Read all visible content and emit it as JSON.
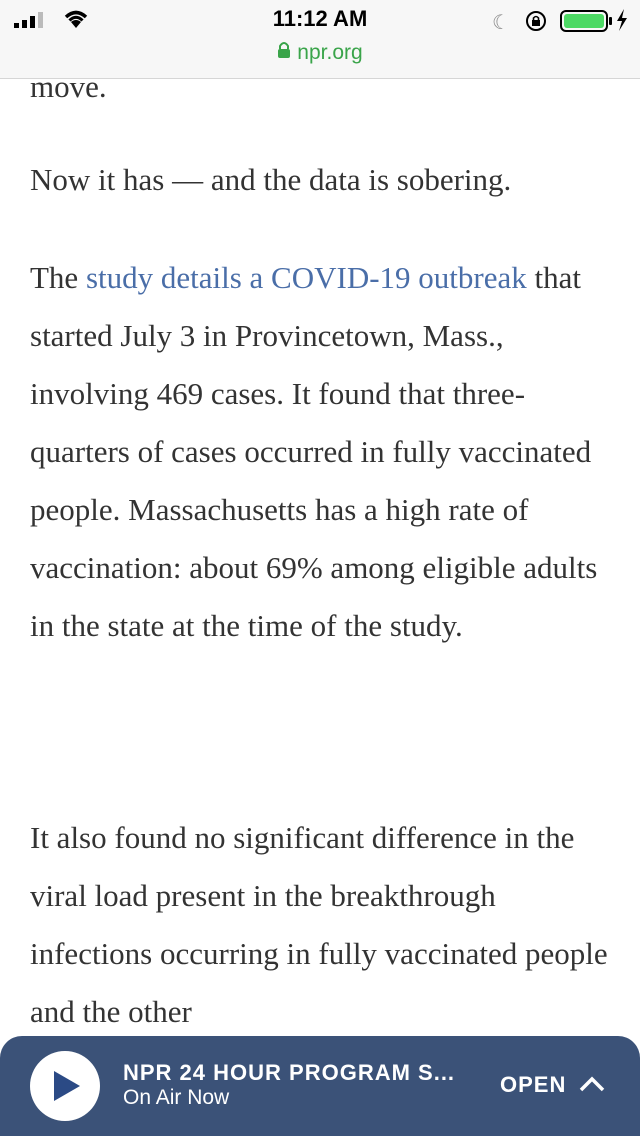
{
  "status_bar": {
    "time": "11:12 AM",
    "url": "npr.org"
  },
  "article": {
    "partial_top": "move.",
    "para1": "Now it has — and the data is sobering.",
    "para2": {
      "lead": "The ",
      "link_text": "study details a COVID-19 outbreak",
      "rest": " that started July 3 in Provincetown, Mass., involving 469 cases. It found that three-quarters of cases occurred in fully vaccinated people. Massachusetts has a high rate of vaccination: about 69% among eligible adults in the state at the time of the study."
    },
    "para3": "It also found no significant difference in the viral load present in the breakthrough infections occurring in fully vaccinated people and the other"
  },
  "player": {
    "title": "NPR 24 HOUR PROGRAM S...",
    "subtitle": "On Air Now",
    "open_label": "OPEN",
    "accent_color": "#3b5278"
  },
  "icons": [
    "signal-icon",
    "wifi-icon",
    "moon-icon",
    "rotation-lock-icon",
    "battery-icon",
    "charging-icon",
    "lock-icon",
    "play-icon",
    "chevron-up-icon"
  ]
}
